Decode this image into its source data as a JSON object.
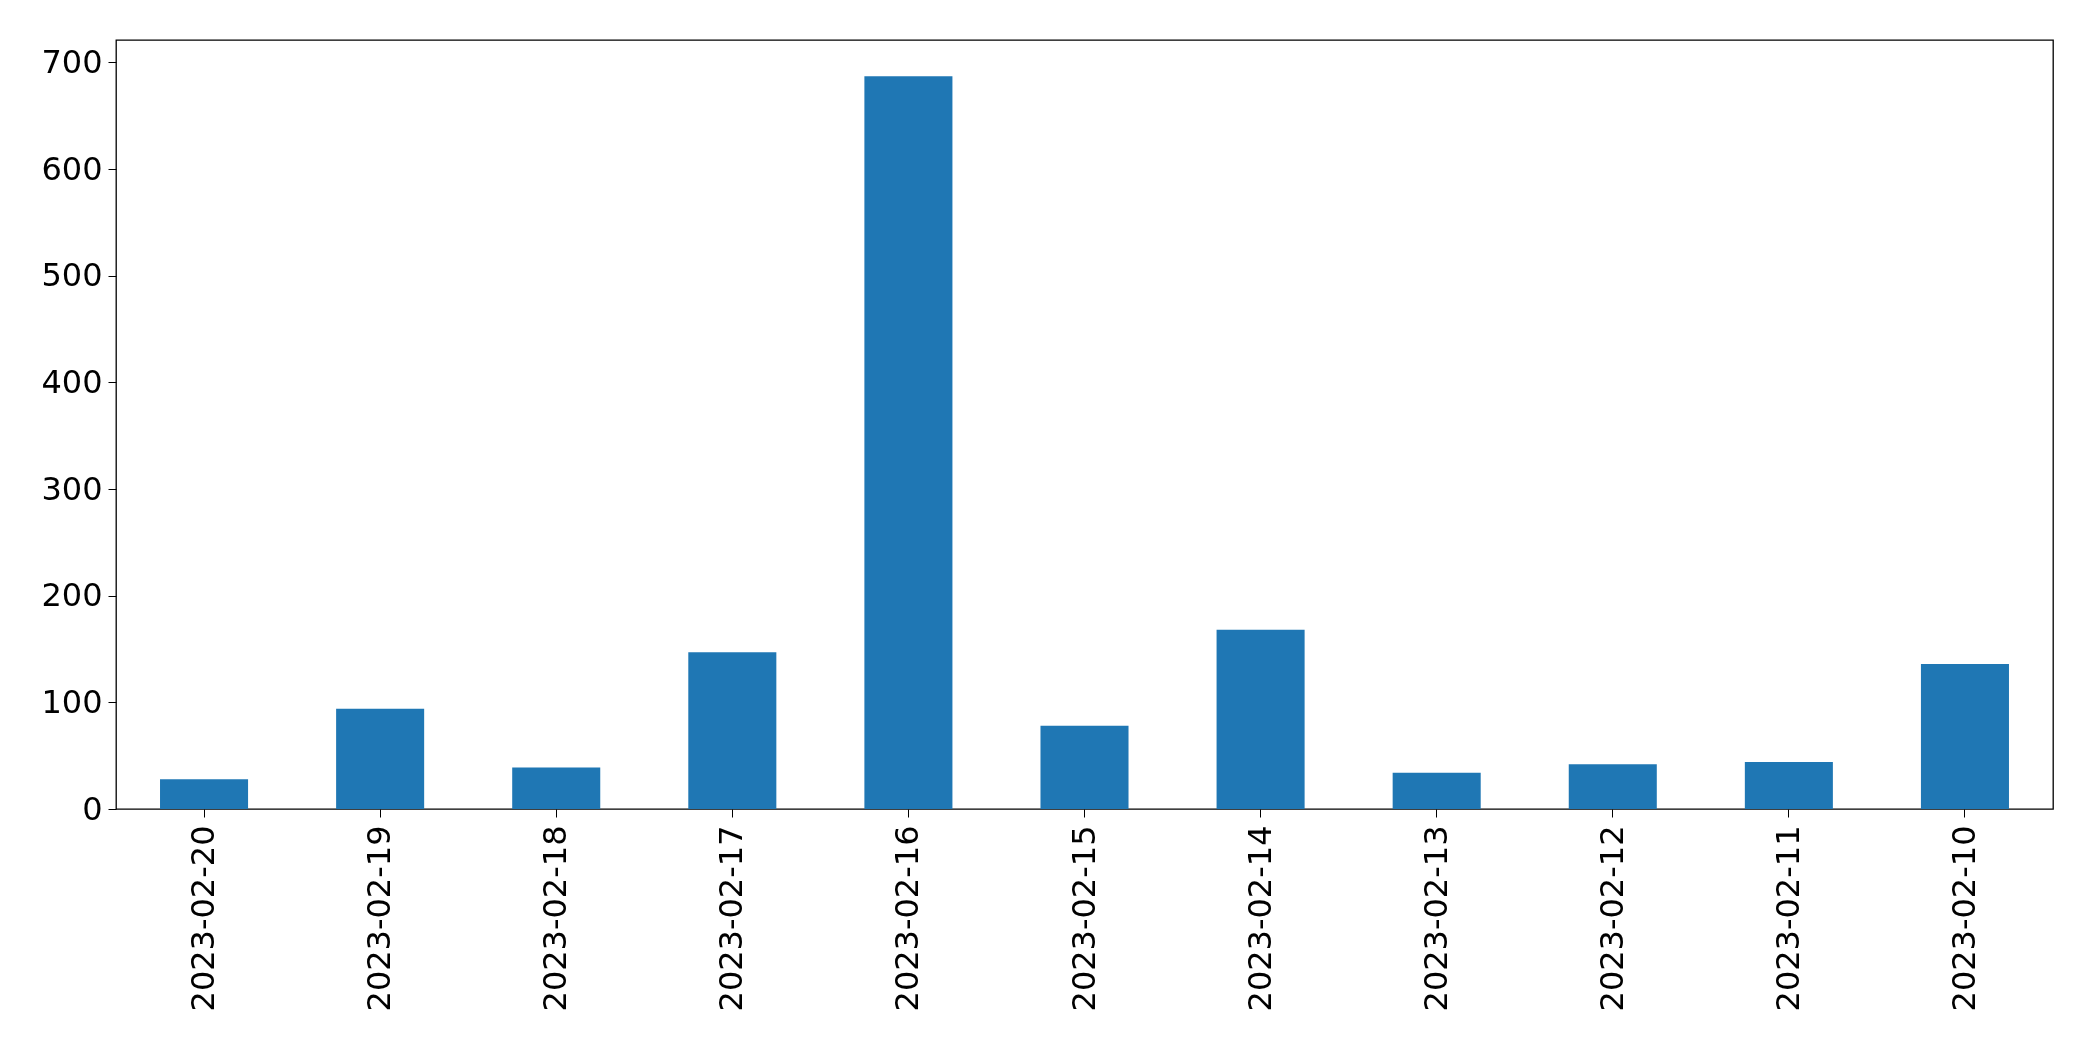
{
  "chart_data": {
    "type": "bar",
    "categories": [
      "2023-02-20",
      "2023-02-19",
      "2023-02-18",
      "2023-02-17",
      "2023-02-16",
      "2023-02-15",
      "2023-02-14",
      "2023-02-13",
      "2023-02-12",
      "2023-02-11",
      "2023-02-10"
    ],
    "values": [
      28,
      94,
      39,
      147,
      687,
      78,
      168,
      34,
      42,
      44,
      136
    ],
    "color": "#1f77b4",
    "ylim": [
      0,
      721
    ],
    "yticks": [
      0,
      100,
      200,
      300,
      400,
      500,
      600,
      700
    ]
  }
}
